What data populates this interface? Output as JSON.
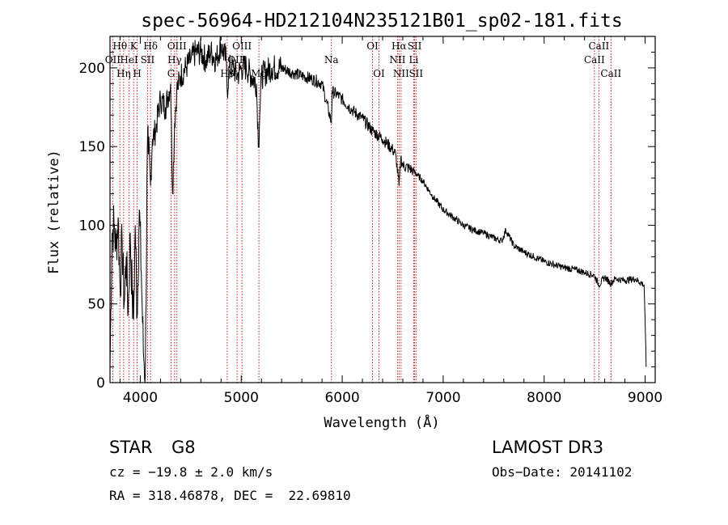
{
  "chart_data": {
    "type": "line",
    "title": "spec-56964-HD212104N235121B01_sp02-181.fits",
    "xlabel": "Wavelength (Å)",
    "ylabel": "Flux (relative)",
    "xlim": [
      3700,
      9100
    ],
    "ylim": [
      0,
      220
    ],
    "xticks": [
      4000,
      5000,
      6000,
      7000,
      8000,
      9000
    ],
    "yticks": [
      0,
      50,
      100,
      150,
      200
    ],
    "series": [
      {
        "name": "flux",
        "x": [
          3700,
          3720,
          3740,
          3760,
          3780,
          3800,
          3820,
          3840,
          3860,
          3880,
          3900,
          3920,
          3933,
          3950,
          3968,
          3990,
          4010,
          4030,
          4050,
          4070,
          4080,
          4101,
          4120,
          4150,
          4200,
          4250,
          4300,
          4320,
          4340,
          4360,
          4400,
          4450,
          4500,
          4550,
          4600,
          4650,
          4700,
          4750,
          4800,
          4850,
          4861,
          4880,
          4920,
          4960,
          5000,
          5050,
          5100,
          5150,
          5172,
          5183,
          5200,
          5300,
          5400,
          5500,
          5600,
          5700,
          5800,
          5893,
          5900,
          5950,
          6000,
          6100,
          6200,
          6300,
          6400,
          6500,
          6530,
          6563,
          6580,
          6600,
          6700,
          6800,
          6900,
          7000,
          7100,
          7200,
          7300,
          7400,
          7500,
          7580,
          7620,
          7700,
          7800,
          7900,
          8000,
          8100,
          8200,
          8300,
          8400,
          8500,
          8542,
          8600,
          8662,
          8700,
          8800,
          8900,
          8990,
          9000,
          9010
        ],
        "y": [
          10,
          95,
          100,
          85,
          105,
          60,
          90,
          50,
          80,
          45,
          95,
          55,
          40,
          100,
          42,
          110,
          70,
          20,
          5,
          150,
          145,
          125,
          155,
          160,
          180,
          175,
          190,
          120,
          165,
          185,
          195,
          200,
          205,
          210,
          210,
          205,
          210,
          205,
          215,
          205,
          185,
          200,
          200,
          195,
          200,
          200,
          195,
          190,
          150,
          170,
          195,
          200,
          200,
          197,
          195,
          193,
          190,
          165,
          185,
          183,
          180,
          173,
          168,
          160,
          155,
          148,
          145,
          125,
          143,
          138,
          135,
          128,
          118,
          110,
          105,
          100,
          97,
          95,
          92,
          90,
          97,
          87,
          83,
          80,
          77,
          75,
          73,
          72,
          70,
          68,
          62,
          67,
          63,
          66,
          65,
          66,
          62,
          40,
          10
        ]
      }
    ],
    "spectral_lines": [
      {
        "label": "Hθ",
        "wavelength": 3798,
        "row": 0
      },
      {
        "label": "OII",
        "wavelength": 3727,
        "row": 1
      },
      {
        "label": "Hη",
        "wavelength": 3835,
        "row": 2
      },
      {
        "label": "K",
        "wavelength": 3934,
        "row": 0
      },
      {
        "label": "HeI",
        "wavelength": 3889,
        "row": 1
      },
      {
        "label": "H",
        "wavelength": 3969,
        "row": 2
      },
      {
        "label": "Hδ",
        "wavelength": 4102,
        "row": 0
      },
      {
        "label": "SII",
        "wavelength": 4072,
        "row": 1
      },
      {
        "label": "OIII",
        "wavelength": 4363,
        "row": 0
      },
      {
        "label": "Hγ",
        "wavelength": 4340,
        "row": 1
      },
      {
        "label": "G",
        "wavelength": 4305,
        "row": 2
      },
      {
        "label": "Hβ",
        "wavelength": 4861,
        "row": 2
      },
      {
        "label": "OIII",
        "wavelength": 5007,
        "row": 0
      },
      {
        "label": "OIII",
        "wavelength": 4959,
        "row": 1
      },
      {
        "label": "Mg",
        "wavelength": 5175,
        "row": 2
      },
      {
        "label": "Na",
        "wavelength": 5893,
        "row": 1
      },
      {
        "label": "OI",
        "wavelength": 6300,
        "row": 0
      },
      {
        "label": "OI",
        "wavelength": 6364,
        "row": 2
      },
      {
        "label": "Hα",
        "wavelength": 6563,
        "row": 0
      },
      {
        "label": "NII",
        "wavelength": 6548,
        "row": 1
      },
      {
        "label": "NII",
        "wavelength": 6583,
        "row": 2
      },
      {
        "label": "SII",
        "wavelength": 6717,
        "row": 0
      },
      {
        "label": "Li",
        "wavelength": 6708,
        "row": 1
      },
      {
        "label": "SII",
        "wavelength": 6731,
        "row": 2
      },
      {
        "label": "CaII",
        "wavelength": 8542,
        "row": 0
      },
      {
        "label": "CaII",
        "wavelength": 8498,
        "row": 1
      },
      {
        "label": "CaII",
        "wavelength": 8662,
        "row": 2
      }
    ]
  },
  "info": {
    "class": "STAR",
    "subclass": "G8",
    "survey": "LAMOST DR3",
    "cz": "cz = −19.8 ± 2.0 km/s",
    "obs_date": "Obs−Date: 20141102",
    "coords": "RA = 318.46878, DEC =  22.69810"
  },
  "colors": {
    "line_marker": "#cc2020",
    "spectrum": "#000000",
    "axes": "#000000"
  }
}
